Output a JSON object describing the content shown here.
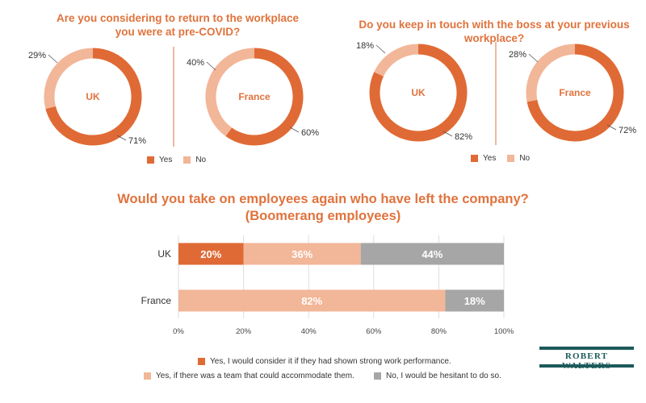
{
  "colors": {
    "yes": "#e06a35",
    "no": "#f2b698",
    "hesitant": "#a6a6a6",
    "accent": "#e0733d",
    "brand": "#1d5a5a"
  },
  "chart_data": [
    {
      "type": "pie",
      "title": "Are you considering to return to the workplace you were at pre-COVID?",
      "donuts": [
        {
          "center_label": "UK",
          "slices": [
            {
              "name": "Yes",
              "value": 71,
              "label": "71%"
            },
            {
              "name": "No",
              "value": 29,
              "label": "29%"
            }
          ]
        },
        {
          "center_label": "France",
          "slices": [
            {
              "name": "Yes",
              "value": 60,
              "label": "60%"
            },
            {
              "name": "No",
              "value": 40,
              "label": "40%"
            }
          ]
        }
      ],
      "legend": [
        "Yes",
        "No"
      ]
    },
    {
      "type": "pie",
      "title": "Do you keep in touch with the boss at your previous workplace?",
      "donuts": [
        {
          "center_label": "UK",
          "slices": [
            {
              "name": "Yes",
              "value": 82,
              "label": "82%"
            },
            {
              "name": "No",
              "value": 18,
              "label": "18%"
            }
          ]
        },
        {
          "center_label": "France",
          "slices": [
            {
              "name": "Yes",
              "value": 72,
              "label": "72%"
            },
            {
              "name": "No",
              "value": 28,
              "label": "28%"
            }
          ]
        }
      ],
      "legend": [
        "Yes",
        "No"
      ]
    },
    {
      "type": "bar",
      "orientation": "horizontal",
      "stacked": true,
      "title": "Would you take on employees again who have left the company? (Boomerang employees)",
      "title_lines": [
        "Would you take on employees again who have left the company?",
        "(Boomerang employees)"
      ],
      "categories": [
        "UK",
        "France"
      ],
      "series": [
        {
          "name": "Yes, I would consider it if they had shown strong work performance.",
          "values": [
            20,
            0
          ]
        },
        {
          "name": "Yes, if there was a team that could accommodate them.",
          "values": [
            36,
            82
          ]
        },
        {
          "name": "No, I would be hesitant to do so.",
          "values": [
            44,
            18
          ]
        }
      ],
      "xlim": [
        0,
        100
      ],
      "xticks": [
        "0%",
        "20%",
        "40%",
        "60%",
        "80%",
        "100%"
      ],
      "grid": true
    }
  ],
  "brand": {
    "logo_text": "ROBERT WALTERS"
  }
}
